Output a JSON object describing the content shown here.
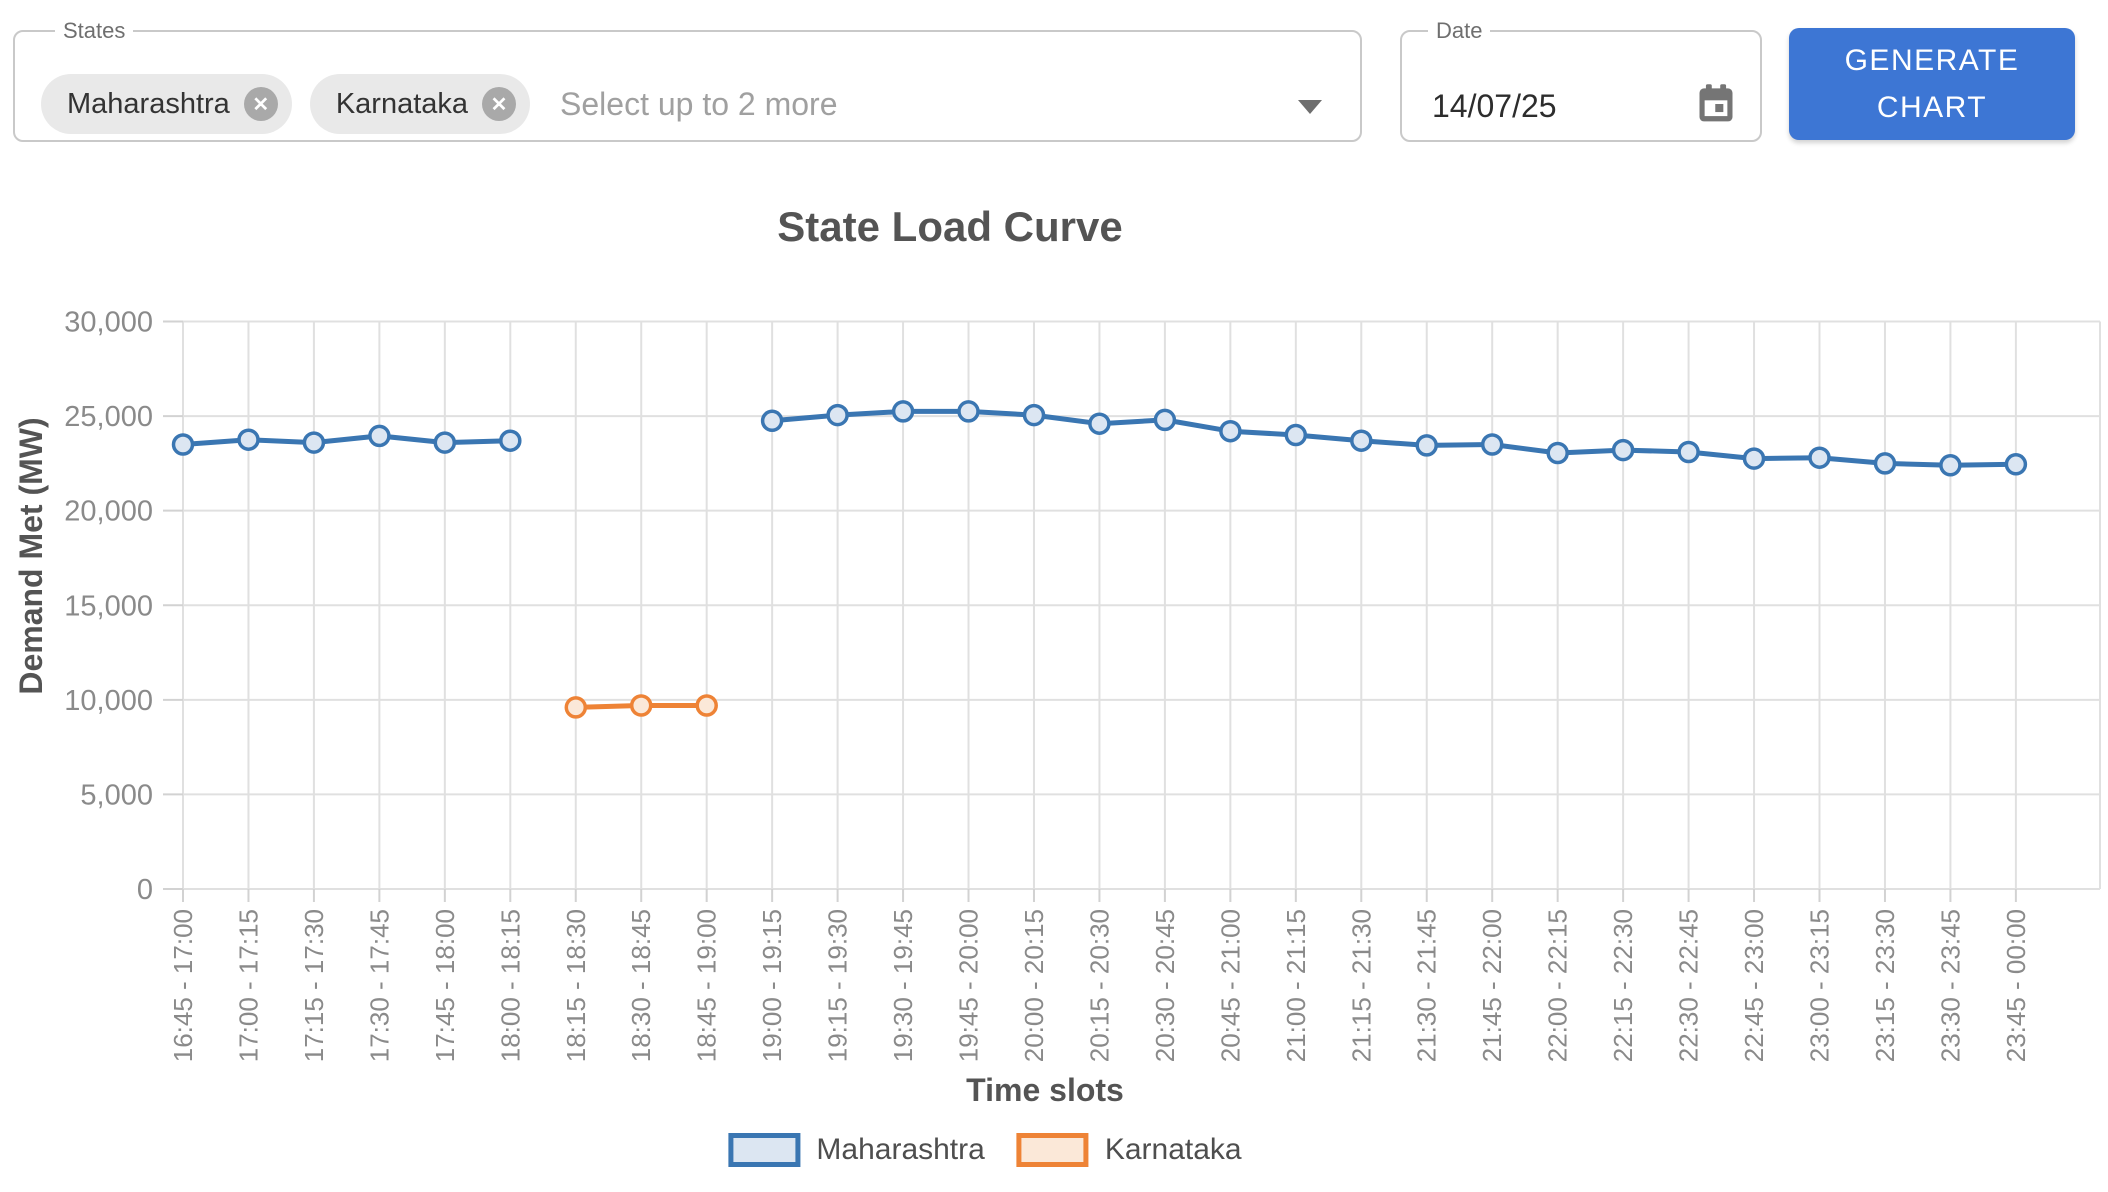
{
  "toolbar": {
    "states_field": {
      "label": "States",
      "chips": [
        {
          "label": "Maharashtra"
        },
        {
          "label": "Karnataka"
        }
      ],
      "placeholder": "Select up to 2 more",
      "chip_remove_icon": "close-circle-icon",
      "dropdown_icon": "chevron-down-icon"
    },
    "date_field": {
      "label": "Date",
      "value": "14/07/25",
      "icon": "calendar-icon"
    },
    "generate_button_label": "GENERATE CHART",
    "accent_color": "#3d76d4"
  },
  "chart_data": {
    "type": "line",
    "title": "State Load Curve",
    "xlabel": "Time slots",
    "ylabel": "Demand Met (MW)",
    "ylim": [
      0,
      30000
    ],
    "yticks": [
      0,
      5000,
      10000,
      15000,
      20000,
      25000,
      30000
    ],
    "ytick_labels": [
      "0",
      "5,000",
      "10,000",
      "15,000",
      "20,000",
      "25,000",
      "30,000"
    ],
    "grid": true,
    "legend_position": "bottom",
    "grid_color": "#e0e0e0",
    "tick_label_color": "#8a8a8a",
    "categories": [
      "16:45 - 17:00",
      "17:00 - 17:15",
      "17:15 - 17:30",
      "17:30 - 17:45",
      "17:45 - 18:00",
      "18:00 - 18:15",
      "18:15 - 18:30",
      "18:30 - 18:45",
      "18:45 - 19:00",
      "19:00 - 19:15",
      "19:15 - 19:30",
      "19:30 - 19:45",
      "19:45 - 20:00",
      "20:00 - 20:15",
      "20:15 - 20:30",
      "20:30 - 20:45",
      "20:45 - 21:00",
      "21:00 - 21:15",
      "21:15 - 21:30",
      "21:30 - 21:45",
      "21:45 - 22:00",
      "22:00 - 22:15",
      "22:15 - 22:30",
      "22:30 - 22:45",
      "22:45 - 23:00",
      "23:00 - 23:15",
      "23:15 - 23:30",
      "23:30 - 23:45",
      "23:45 - 00:00"
    ],
    "series": [
      {
        "name": "Maharashtra",
        "color": "#3a76b2",
        "fill": "#dce6f2",
        "values": [
          23500,
          23750,
          23600,
          23950,
          23600,
          23700,
          null,
          null,
          null,
          24750,
          25050,
          25250,
          25250,
          25050,
          24600,
          24800,
          24200,
          24000,
          23700,
          23450,
          23500,
          23050,
          23200,
          23100,
          22750,
          22800,
          22500,
          22400,
          22450
        ]
      },
      {
        "name": "Karnataka",
        "color": "#ee8336",
        "fill": "#fbe8d8",
        "values": [
          null,
          null,
          null,
          null,
          null,
          null,
          9600,
          9700,
          9700,
          null,
          null,
          null,
          null,
          null,
          null,
          null,
          null,
          null,
          null,
          null,
          null,
          null,
          null,
          null,
          null,
          null,
          null,
          null,
          null
        ]
      }
    ]
  }
}
